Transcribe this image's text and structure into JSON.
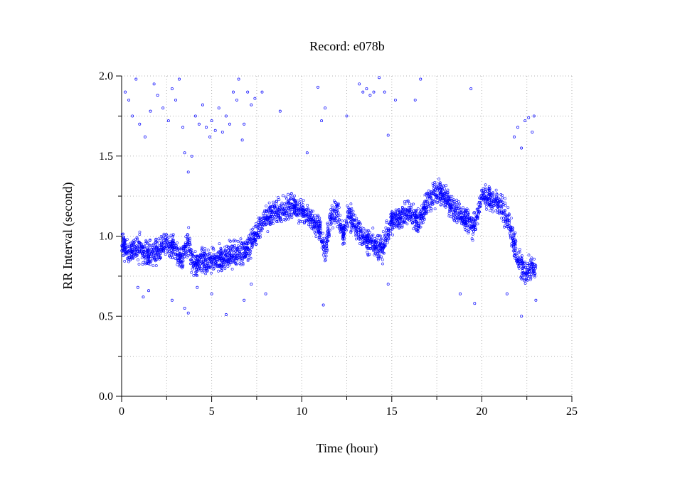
{
  "chart_data": {
    "type": "scatter",
    "title": "Record:  e078b",
    "xlabel": "Time (hour)",
    "ylabel": "RR Interval (second)",
    "xlim": [
      0,
      25
    ],
    "ylim": [
      0,
      2
    ],
    "xticks": [
      "0",
      "5",
      "10",
      "15",
      "20",
      "25"
    ],
    "yticks": [
      "0.0",
      "0.5",
      "1.0",
      "1.5",
      "2.0"
    ],
    "grid": true,
    "legend": "none",
    "marker": "open-circle",
    "color": "#0000ff",
    "trend": [
      [
        0.0,
        0.95
      ],
      [
        0.5,
        0.9
      ],
      [
        1.0,
        0.93
      ],
      [
        1.5,
        0.88
      ],
      [
        2.0,
        0.92
      ],
      [
        2.5,
        0.95
      ],
      [
        3.0,
        0.92
      ],
      [
        3.3,
        0.85
      ],
      [
        3.7,
        0.98
      ],
      [
        4.0,
        0.8
      ],
      [
        4.5,
        0.85
      ],
      [
        5.0,
        0.84
      ],
      [
        5.5,
        0.86
      ],
      [
        6.0,
        0.88
      ],
      [
        6.5,
        0.9
      ],
      [
        7.0,
        0.92
      ],
      [
        7.5,
        1.02
      ],
      [
        8.0,
        1.12
      ],
      [
        8.5,
        1.15
      ],
      [
        9.0,
        1.18
      ],
      [
        9.5,
        1.2
      ],
      [
        10.0,
        1.15
      ],
      [
        10.5,
        1.1
      ],
      [
        11.0,
        1.05
      ],
      [
        11.3,
        0.9
      ],
      [
        11.6,
        1.12
      ],
      [
        12.0,
        1.15
      ],
      [
        12.3,
        1.0
      ],
      [
        12.6,
        1.15
      ],
      [
        13.0,
        1.05
      ],
      [
        13.5,
        0.98
      ],
      [
        14.0,
        0.95
      ],
      [
        14.5,
        0.92
      ],
      [
        15.0,
        1.1
      ],
      [
        15.5,
        1.12
      ],
      [
        16.0,
        1.15
      ],
      [
        16.5,
        1.08
      ],
      [
        17.0,
        1.22
      ],
      [
        17.5,
        1.28
      ],
      [
        18.0,
        1.25
      ],
      [
        18.5,
        1.15
      ],
      [
        19.0,
        1.12
      ],
      [
        19.5,
        1.05
      ],
      [
        20.0,
        1.25
      ],
      [
        20.5,
        1.24
      ],
      [
        21.0,
        1.2
      ],
      [
        21.5,
        1.1
      ],
      [
        22.0,
        0.85
      ],
      [
        22.5,
        0.78
      ],
      [
        23.0,
        0.8
      ]
    ],
    "outliers": [
      [
        0.2,
        1.9
      ],
      [
        0.4,
        1.85
      ],
      [
        0.6,
        1.75
      ],
      [
        0.8,
        1.98
      ],
      [
        1.0,
        1.7
      ],
      [
        1.3,
        1.62
      ],
      [
        1.6,
        1.78
      ],
      [
        1.8,
        1.95
      ],
      [
        2.0,
        1.88
      ],
      [
        2.3,
        1.8
      ],
      [
        2.6,
        1.72
      ],
      [
        2.8,
        1.92
      ],
      [
        3.0,
        1.85
      ],
      [
        3.2,
        1.98
      ],
      [
        3.4,
        1.68
      ],
      [
        3.5,
        1.52
      ],
      [
        3.7,
        1.4
      ],
      [
        3.9,
        1.5
      ],
      [
        4.1,
        1.75
      ],
      [
        4.3,
        1.7
      ],
      [
        4.5,
        1.82
      ],
      [
        4.7,
        1.68
      ],
      [
        4.9,
        1.62
      ],
      [
        5.0,
        1.72
      ],
      [
        5.2,
        1.66
      ],
      [
        5.4,
        1.8
      ],
      [
        5.6,
        1.65
      ],
      [
        5.8,
        1.75
      ],
      [
        6.0,
        1.7
      ],
      [
        6.2,
        1.9
      ],
      [
        6.4,
        1.85
      ],
      [
        6.5,
        1.98
      ],
      [
        6.7,
        1.6
      ],
      [
        6.8,
        1.7
      ],
      [
        7.0,
        1.9
      ],
      [
        7.2,
        1.82
      ],
      [
        7.4,
        1.86
      ],
      [
        7.8,
        1.9
      ],
      [
        8.8,
        1.78
      ],
      [
        10.3,
        1.52
      ],
      [
        10.9,
        1.93
      ],
      [
        11.1,
        1.72
      ],
      [
        11.3,
        1.8
      ],
      [
        12.5,
        1.75
      ],
      [
        13.2,
        1.95
      ],
      [
        13.4,
        1.9
      ],
      [
        13.6,
        1.92
      ],
      [
        13.8,
        1.88
      ],
      [
        14.0,
        1.9
      ],
      [
        14.3,
        1.99
      ],
      [
        14.6,
        1.9
      ],
      [
        14.8,
        1.63
      ],
      [
        15.2,
        1.85
      ],
      [
        16.3,
        1.85
      ],
      [
        16.6,
        1.98
      ],
      [
        19.4,
        1.92
      ],
      [
        21.8,
        1.62
      ],
      [
        22.0,
        1.68
      ],
      [
        22.2,
        1.55
      ],
      [
        22.4,
        1.72
      ],
      [
        22.6,
        1.74
      ],
      [
        22.8,
        1.65
      ],
      [
        22.9,
        1.75
      ],
      [
        0.9,
        0.68
      ],
      [
        1.2,
        0.62
      ],
      [
        1.5,
        0.66
      ],
      [
        2.8,
        0.6
      ],
      [
        3.5,
        0.55
      ],
      [
        3.7,
        0.52
      ],
      [
        4.2,
        0.68
      ],
      [
        5.0,
        0.64
      ],
      [
        5.8,
        0.51
      ],
      [
        6.8,
        0.6
      ],
      [
        7.2,
        0.7
      ],
      [
        8.0,
        0.64
      ],
      [
        11.2,
        0.57
      ],
      [
        14.8,
        0.7
      ],
      [
        18.8,
        0.64
      ],
      [
        19.6,
        0.58
      ],
      [
        21.4,
        0.64
      ],
      [
        22.2,
        0.5
      ],
      [
        23.0,
        0.6
      ]
    ]
  }
}
